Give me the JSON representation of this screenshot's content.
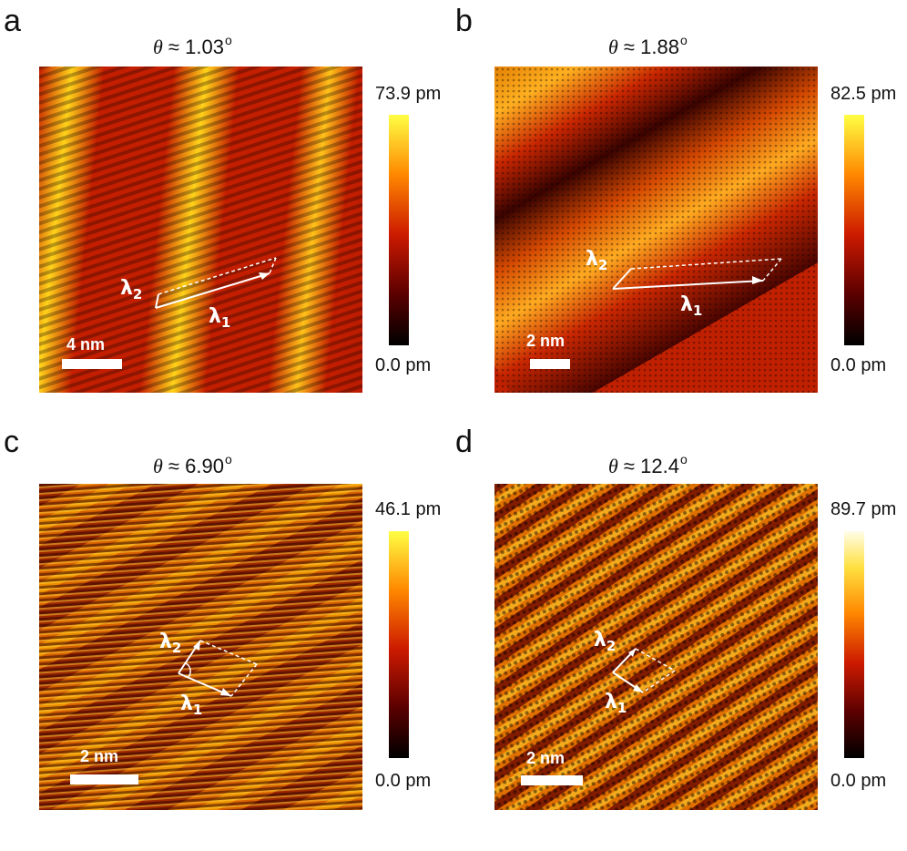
{
  "colors": {
    "cmap_bottom": "#000000",
    "cmap_mid": "#cc1a00",
    "cmap_upper": "#ff8800",
    "cmap_top": "#ffff44",
    "cmap_top_d": "#fffde8",
    "annotation": "#ffffff"
  },
  "panels": [
    {
      "letter": "a",
      "theta_symbol": "θ",
      "theta_text": " ≈ 1.03",
      "degree": "o",
      "colorbar": {
        "max": "73.9 pm",
        "min": "0.0 pm"
      },
      "scale_bar": "4 nm",
      "lambda1": "λ",
      "lambda1_sub": "1",
      "lambda2": "λ",
      "lambda2_sub": "2"
    },
    {
      "letter": "b",
      "theta_symbol": "θ",
      "theta_text": " ≈ 1.88",
      "degree": "o",
      "colorbar": {
        "max": "82.5 pm",
        "min": "0.0 pm"
      },
      "scale_bar": "2 nm",
      "lambda1": "λ",
      "lambda1_sub": "1",
      "lambda2": "λ",
      "lambda2_sub": "2"
    },
    {
      "letter": "c",
      "theta_symbol": "θ",
      "theta_text": " ≈ 6.90",
      "degree": "o",
      "colorbar": {
        "max": "46.1 pm",
        "min": "0.0 pm"
      },
      "scale_bar": "2 nm",
      "lambda1": "λ",
      "lambda1_sub": "1",
      "lambda2": "λ",
      "lambda2_sub": "2"
    },
    {
      "letter": "d",
      "theta_symbol": "θ",
      "theta_text": " ≈ 12.4",
      "degree": "o",
      "colorbar": {
        "max": "89.7 pm",
        "min": "0.0 pm"
      },
      "scale_bar": "2 nm",
      "lambda1": "λ",
      "lambda1_sub": "1",
      "lambda2": "λ",
      "lambda2_sub": "2"
    }
  ]
}
